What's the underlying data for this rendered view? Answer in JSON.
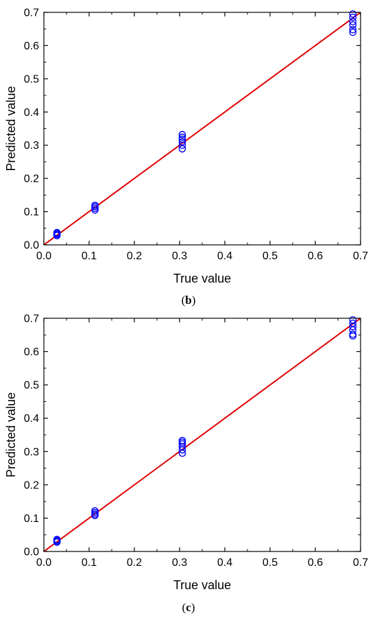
{
  "chart_data": [
    {
      "type": "scatter",
      "caption_prefix": "(",
      "caption_letter": "b",
      "caption_suffix": ")",
      "title": "",
      "xlabel": "True value",
      "ylabel": "Predicted value",
      "xlim": [
        0,
        0.7
      ],
      "ylim": [
        0,
        0.7
      ],
      "xticks": [
        "0.0",
        "0.1",
        "0.2",
        "0.3",
        "0.4",
        "0.5",
        "0.6",
        "0.7"
      ],
      "yticks": [
        "0.0",
        "0.1",
        "0.2",
        "0.3",
        "0.4",
        "0.5",
        "0.6",
        "0.7"
      ],
      "grid": false,
      "series": [
        {
          "marker": "open-circle",
          "color": "#0000ff",
          "x": [
            0.029,
            0.029,
            0.029,
            0.029,
            0.113,
            0.113,
            0.113,
            0.113,
            0.306,
            0.306,
            0.306,
            0.306,
            0.306,
            0.306,
            0.683,
            0.683,
            0.683,
            0.683,
            0.683,
            0.683
          ],
          "y": [
            0.028,
            0.031,
            0.034,
            0.037,
            0.105,
            0.11,
            0.115,
            0.119,
            0.289,
            0.3,
            0.31,
            0.318,
            0.324,
            0.332,
            0.64,
            0.648,
            0.662,
            0.672,
            0.685,
            0.695
          ]
        }
      ],
      "reference_line": {
        "color": "#e00000",
        "x": [
          0,
          0.7
        ],
        "y": [
          0,
          0.7
        ]
      }
    },
    {
      "type": "scatter",
      "caption_prefix": "(",
      "caption_letter": "c",
      "caption_suffix": ")",
      "title": "",
      "xlabel": "True value",
      "ylabel": "Predicted value",
      "xlim": [
        0,
        0.7
      ],
      "ylim": [
        0,
        0.7
      ],
      "xticks": [
        "0.0",
        "0.1",
        "0.2",
        "0.3",
        "0.4",
        "0.5",
        "0.6",
        "0.7"
      ],
      "yticks": [
        "0.0",
        "0.1",
        "0.2",
        "0.3",
        "0.4",
        "0.5",
        "0.6",
        "0.7"
      ],
      "grid": false,
      "series": [
        {
          "marker": "open-circle",
          "color": "#0000ff",
          "x": [
            0.029,
            0.029,
            0.029,
            0.029,
            0.113,
            0.113,
            0.113,
            0.113,
            0.306,
            0.306,
            0.306,
            0.306,
            0.306,
            0.306,
            0.683,
            0.683,
            0.683,
            0.683,
            0.683,
            0.683
          ],
          "y": [
            0.028,
            0.031,
            0.034,
            0.036,
            0.108,
            0.112,
            0.117,
            0.122,
            0.295,
            0.305,
            0.315,
            0.323,
            0.328,
            0.333,
            0.647,
            0.652,
            0.665,
            0.675,
            0.685,
            0.695
          ]
        }
      ],
      "reference_line": {
        "color": "#e00000",
        "x": [
          0,
          0.7
        ],
        "y": [
          0,
          0.7
        ]
      }
    }
  ]
}
